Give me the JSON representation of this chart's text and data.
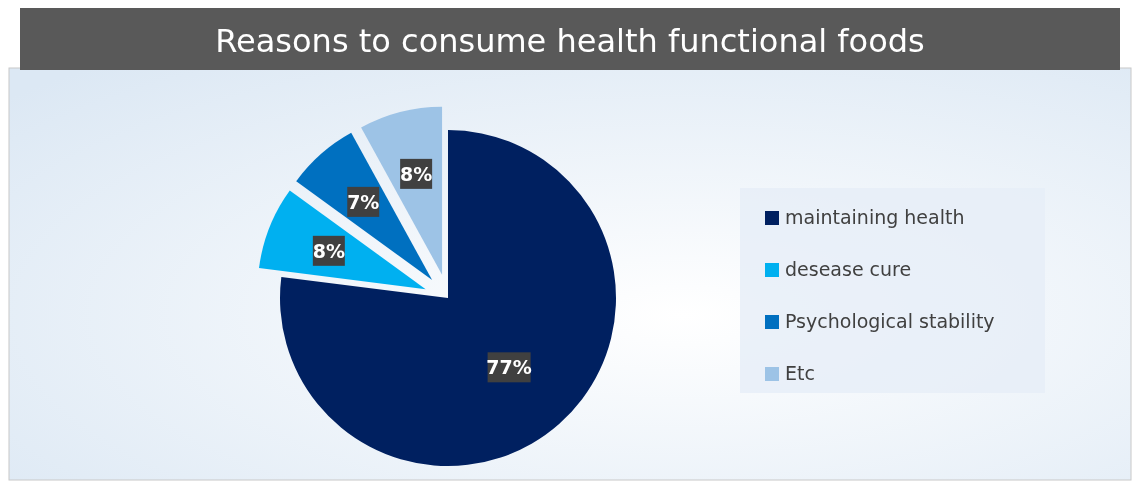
{
  "chart_data": {
    "type": "pie",
    "title": "Reasons to consume health functional foods",
    "categories": [
      "maintaining health",
      "desease cure",
      "Psychological stability",
      "Etc"
    ],
    "values": [
      77,
      8,
      7,
      8
    ],
    "colors": [
      "#002060",
      "#00b0f0",
      "#0070c0",
      "#9dc3e6"
    ],
    "value_labels": [
      "77%",
      "8%",
      "7%",
      "8%"
    ],
    "legend": "right"
  }
}
